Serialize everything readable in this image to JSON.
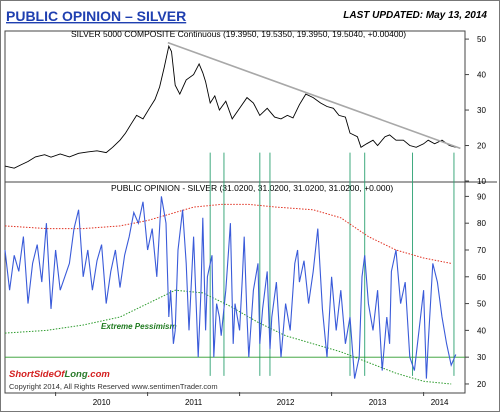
{
  "header": {
    "title": "PUBLIC OPINION – SILVER",
    "last_updated": "LAST UPDATED:  May 13, 2014"
  },
  "footer": {
    "brand_prefix": "Short",
    "brand_mid": "SideOf",
    "brand_suffix": "Long",
    "brand_tld": ".com",
    "copyright": "Copyright 2014, All Rights Reserved  www.sentimenTrader.com"
  },
  "colors": {
    "title": "#1f3fb0",
    "price": "#000000",
    "trendline": "#a8a8a8",
    "opinion": "#3a5bd9",
    "upper_band": "#e03020",
    "lower_band": "#2a9a2a",
    "marker_lines": "#2aa070",
    "pessimism_line": "#2a9a2a"
  },
  "chart_data": [
    {
      "type": "line",
      "label": "SILVER 5000 COMPOSITE Continuous (19.3950, 19.5350, 19.3950, 19.5040, +0.00400)",
      "ylim": [
        10,
        52
      ],
      "yticks": [
        10,
        20,
        30,
        40,
        50
      ],
      "xlim": [
        2009.45,
        2014.45
      ],
      "xticks": [
        {
          "label": "2010",
          "value": 2010.0
        },
        {
          "label": "2011",
          "value": 2011.0
        },
        {
          "label": "2012",
          "value": 2012.0
        },
        {
          "label": "2013",
          "value": 2013.0
        },
        {
          "label": "2014",
          "value": 2014.0
        }
      ],
      "series": [
        {
          "x": [
            2009.45,
            2009.55,
            2009.62,
            2009.7,
            2009.78,
            2009.88,
            2009.95,
            2010.05,
            2010.15,
            2010.25,
            2010.35,
            2010.45,
            2010.55,
            2010.62,
            2010.7,
            2010.76,
            2010.82,
            2010.88,
            2010.95,
            2011.02,
            2011.08,
            2011.13,
            2011.18,
            2011.23,
            2011.26,
            2011.3,
            2011.35,
            2011.42,
            2011.5,
            2011.56,
            2011.6,
            2011.63,
            2011.68,
            2011.73,
            2011.78,
            2011.85,
            2011.92,
            2012.0,
            2012.08,
            2012.15,
            2012.22,
            2012.3,
            2012.38,
            2012.45,
            2012.52,
            2012.58,
            2012.65,
            2012.72,
            2012.8,
            2012.88,
            2012.95,
            2013.02,
            2013.08,
            2013.15,
            2013.2,
            2013.28,
            2013.32,
            2013.38,
            2013.45,
            2013.5,
            2013.58,
            2013.63,
            2013.7,
            2013.78,
            2013.85,
            2013.92,
            2014.0,
            2014.05,
            2014.12,
            2014.2,
            2014.28,
            2014.35
          ],
          "values": [
            14.2,
            13.6,
            14.5,
            15.5,
            16.8,
            17.4,
            16.7,
            17.6,
            16.8,
            17.8,
            18.2,
            18.5,
            18.0,
            19.5,
            21.5,
            23.5,
            26.0,
            28.5,
            27.5,
            30.5,
            33.0,
            36.5,
            42.0,
            48.0,
            46.5,
            37.0,
            34.5,
            38.5,
            40.0,
            43.0,
            40.5,
            38.0,
            32.0,
            34.0,
            30.0,
            32.5,
            27.5,
            30.5,
            33.5,
            32.0,
            28.5,
            30.5,
            28.0,
            27.5,
            28.5,
            27.8,
            31.5,
            34.5,
            33.5,
            32.0,
            31.0,
            30.5,
            28.5,
            28.0,
            23.5,
            22.5,
            19.5,
            20.5,
            21.5,
            20.0,
            22.5,
            23.0,
            21.5,
            21.5,
            20.0,
            19.5,
            20.5,
            21.5,
            20.5,
            21.5,
            20.0,
            19.5
          ]
        }
      ],
      "trendline": {
        "x": [
          2011.22,
          2014.4
        ],
        "y": [
          49.0,
          19.2
        ]
      }
    },
    {
      "type": "line",
      "label": "PUBLIC OPINION - SILVER (31.0200, 31.0200, 31.0200, 31.0200, +0.000)",
      "ylim": [
        17,
        95
      ],
      "yticks": [
        20,
        30,
        40,
        50,
        60,
        70,
        80,
        90
      ],
      "annotation": "Extreme Pessimism",
      "pessimism_level": 30,
      "series": [
        {
          "x": [
            2009.45,
            2009.5,
            2009.55,
            2009.6,
            2009.65,
            2009.7,
            2009.75,
            2009.8,
            2009.85,
            2009.9,
            2009.95,
            2010.0,
            2010.05,
            2010.1,
            2010.15,
            2010.2,
            2010.25,
            2010.3,
            2010.35,
            2010.4,
            2010.45,
            2010.5,
            2010.55,
            2010.6,
            2010.65,
            2010.7,
            2010.75,
            2010.8,
            2010.85,
            2010.9,
            2010.95,
            2011.0,
            2011.05,
            2011.1,
            2011.15,
            2011.2,
            2011.23,
            2011.25,
            2011.28,
            2011.3,
            2011.33,
            2011.38,
            2011.42,
            2011.45,
            2011.5,
            2011.55,
            2011.58,
            2011.6,
            2011.63,
            2011.65,
            2011.7,
            2011.72,
            2011.75,
            2011.78,
            2011.8,
            2011.85,
            2011.88,
            2011.9,
            2011.93,
            2011.95,
            2012.0,
            2012.03,
            2012.05,
            2012.08,
            2012.1,
            2012.15,
            2012.2,
            2012.22,
            2012.25,
            2012.3,
            2012.33,
            2012.35,
            2012.4,
            2012.45,
            2012.5,
            2012.55,
            2012.6,
            2012.63,
            2012.65,
            2012.7,
            2012.75,
            2012.8,
            2012.85,
            2012.9,
            2012.95,
            2013.0,
            2013.05,
            2013.1,
            2013.15,
            2013.2,
            2013.25,
            2013.3,
            2013.33,
            2013.36,
            2013.4,
            2013.45,
            2013.5,
            2013.55,
            2013.6,
            2013.63,
            2013.65,
            2013.7,
            2013.75,
            2013.8,
            2013.85,
            2013.9,
            2013.95,
            2014.0,
            2014.03,
            2014.05,
            2014.1,
            2014.15,
            2014.2,
            2014.25,
            2014.3,
            2014.35
          ],
          "values": [
            70,
            55,
            68,
            62,
            75,
            50,
            65,
            72,
            58,
            80,
            48,
            70,
            55,
            60,
            65,
            78,
            85,
            60,
            70,
            55,
            66,
            72,
            50,
            62,
            70,
            56,
            68,
            75,
            84,
            80,
            88,
            70,
            78,
            60,
            90,
            80,
            45,
            55,
            35,
            40,
            70,
            85,
            65,
            40,
            75,
            30,
            55,
            82,
            40,
            60,
            68,
            30,
            50,
            45,
            38,
            55,
            70,
            80,
            35,
            50,
            40,
            60,
            75,
            45,
            30,
            55,
            65,
            35,
            48,
            62,
            33,
            45,
            58,
            30,
            50,
            40,
            65,
            70,
            58,
            66,
            50,
            62,
            78,
            48,
            30,
            60,
            40,
            55,
            35,
            45,
            22,
            30,
            60,
            68,
            50,
            40,
            55,
            25,
            45,
            35,
            62,
            70,
            50,
            58,
            30,
            25,
            40,
            55,
            22,
            35,
            65,
            58,
            45,
            35,
            27,
            31
          ]
        }
      ],
      "upper_band": {
        "x": [
          2009.45,
          2009.9,
          2010.3,
          2010.7,
          2011.0,
          2011.3,
          2011.5,
          2011.8,
          2012.1,
          2012.4,
          2012.8,
          2013.1,
          2013.4,
          2013.7,
          2014.0,
          2014.3
        ],
        "values": [
          79,
          78,
          78,
          79,
          81,
          84,
          86,
          87,
          87,
          86,
          85,
          82,
          75,
          70,
          67,
          65
        ]
      },
      "lower_band": {
        "x": [
          2009.45,
          2009.9,
          2010.3,
          2010.7,
          2011.0,
          2011.3,
          2011.6,
          2011.9,
          2012.2,
          2012.5,
          2012.8,
          2013.1,
          2013.4,
          2013.7,
          2014.0,
          2014.3
        ],
        "values": [
          39,
          40,
          42,
          45,
          50,
          55,
          54,
          49,
          43,
          38,
          35,
          32,
          28,
          24,
          21,
          20
        ]
      },
      "markers": [
        2011.68,
        2011.83,
        2012.22,
        2012.33,
        2013.2,
        2013.36,
        2013.88,
        2014.33
      ]
    }
  ]
}
